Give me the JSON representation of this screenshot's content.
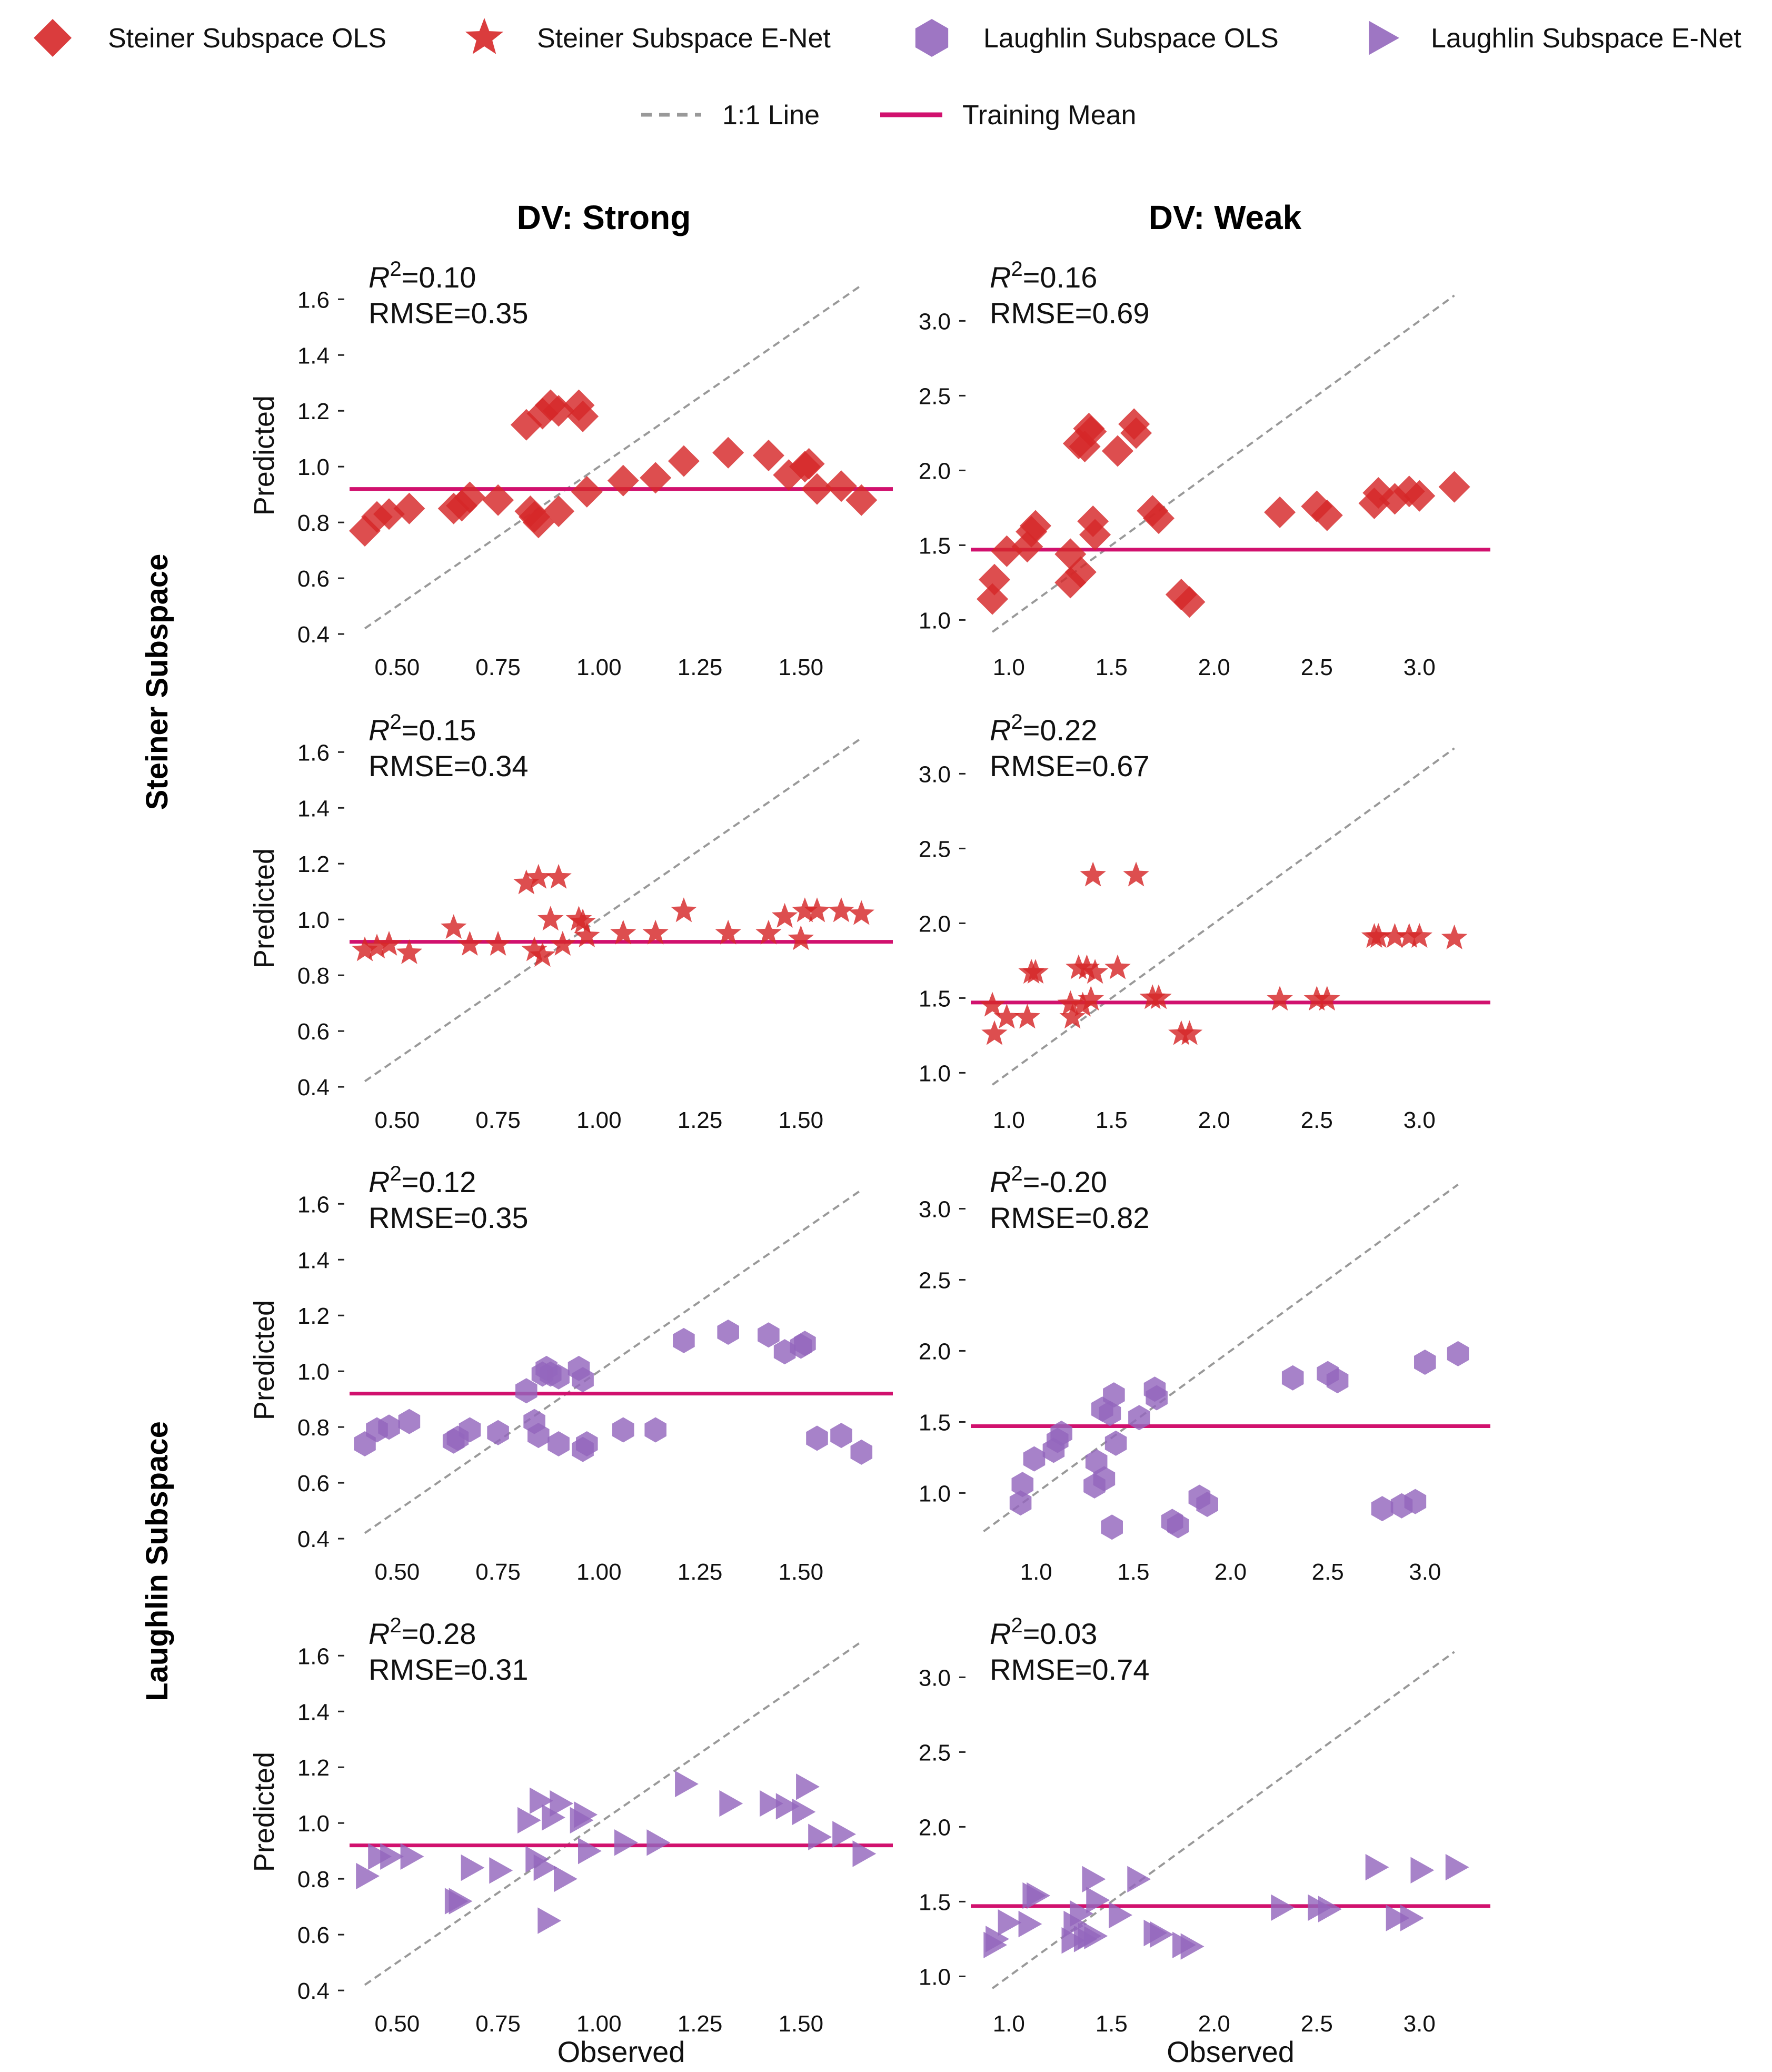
{
  "legend": {
    "items": [
      {
        "label": "Steiner Subspace OLS",
        "marker": "diamond",
        "color": "#d62728"
      },
      {
        "label": "Steiner Subspace E-Net",
        "marker": "star",
        "color": "#d62728"
      },
      {
        "label": "Laughlin Subspace OLS",
        "marker": "hexagon",
        "color": "#9467bd"
      },
      {
        "label": "Laughlin Subspace E-Net",
        "marker": "triangle-right",
        "color": "#9467bd"
      },
      {
        "label": "1:1 Line",
        "marker": "dashed-line",
        "color": "#999999"
      },
      {
        "label": "Training Mean",
        "marker": "solid-line",
        "color": "#d1116e"
      }
    ]
  },
  "columns": [
    "DV: Strong",
    "DV: Weak"
  ],
  "rows": [
    "Steiner Subspace",
    "Laughlin Subspace"
  ],
  "chart_data": [
    {
      "type": "scatter",
      "row": 0,
      "col": 0,
      "marker": "diamond",
      "color": "#d62728",
      "title": "DV: Strong",
      "xlabel": "",
      "ylabel": "Predicted",
      "annotation": {
        "r2": "=0.10",
        "rmse": "RMSE=0.35"
      },
      "xlim": [
        0.39,
        1.72
      ],
      "ylim": [
        0.37,
        1.71
      ],
      "xticks": [
        0.5,
        0.75,
        1.0,
        1.25,
        1.5
      ],
      "xtick_labels": [
        "0.50",
        "0.75",
        "1.00",
        "1.25",
        "1.50"
      ],
      "yticks": [
        0.4,
        0.6,
        0.8,
        1.0,
        1.2,
        1.4,
        1.6
      ],
      "ytick_labels": [
        "0.4",
        "0.6",
        "0.8",
        "1.0",
        "1.2",
        "1.4",
        "1.6"
      ],
      "identity_line": [
        0.42,
        1.65
      ],
      "training_mean": 0.92,
      "x": [
        0.42,
        0.45,
        0.48,
        0.53,
        0.64,
        0.66,
        0.68,
        0.75,
        0.82,
        0.83,
        0.85,
        0.86,
        0.88,
        0.9,
        0.9,
        0.95,
        0.96,
        0.97,
        1.06,
        1.14,
        1.21,
        1.32,
        1.42,
        1.47,
        1.51,
        1.52,
        1.54,
        1.6,
        1.65,
        0.84
      ],
      "y": [
        0.77,
        0.82,
        0.83,
        0.85,
        0.85,
        0.86,
        0.89,
        0.88,
        1.15,
        0.84,
        0.8,
        1.19,
        1.22,
        1.2,
        0.84,
        1.22,
        1.18,
        0.91,
        0.95,
        0.96,
        1.02,
        1.05,
        1.04,
        0.97,
        1.0,
        1.01,
        0.92,
        0.93,
        0.88,
        0.82
      ]
    },
    {
      "type": "scatter",
      "row": 0,
      "col": 1,
      "marker": "diamond",
      "color": "#d62728",
      "title": "DV: Weak",
      "xlabel": "",
      "ylabel": "",
      "annotation": {
        "r2": "=0.16",
        "rmse": "RMSE=0.69"
      },
      "xlim": [
        0.83,
        3.33
      ],
      "ylim": [
        0.85,
        3.35
      ],
      "xticks": [
        1.0,
        1.5,
        2.0,
        2.5,
        3.0
      ],
      "xtick_labels": [
        "1.0",
        "1.5",
        "2.0",
        "2.5",
        "3.0"
      ],
      "yticks": [
        1.0,
        1.5,
        2.0,
        2.5,
        3.0
      ],
      "ytick_labels": [
        "1.0",
        "1.5",
        "2.0",
        "2.5",
        "3.0"
      ],
      "identity_line": [
        0.92,
        3.17
      ],
      "training_mean": 1.47,
      "x": [
        0.92,
        0.93,
        0.99,
        1.09,
        1.11,
        1.13,
        1.3,
        1.3,
        1.34,
        1.35,
        1.37,
        1.4,
        1.41,
        1.42,
        1.53,
        1.61,
        1.62,
        1.7,
        1.73,
        1.84,
        1.88,
        2.32,
        2.5,
        2.55,
        2.78,
        2.8,
        2.88,
        2.95,
        3.0,
        3.17,
        1.39
      ],
      "y": [
        1.14,
        1.27,
        1.46,
        1.49,
        1.59,
        1.63,
        1.25,
        1.44,
        2.18,
        1.32,
        2.16,
        2.26,
        1.66,
        1.57,
        2.13,
        2.31,
        2.25,
        1.73,
        1.68,
        1.17,
        1.12,
        1.72,
        1.76,
        1.7,
        1.78,
        1.85,
        1.81,
        1.86,
        1.83,
        1.89,
        2.28
      ]
    },
    {
      "type": "scatter",
      "row": 1,
      "col": 0,
      "marker": "star",
      "color": "#d62728",
      "title": "",
      "xlabel": "",
      "ylabel": "Predicted",
      "annotation": {
        "r2": "=0.15",
        "rmse": "RMSE=0.34"
      },
      "xlim": [
        0.39,
        1.72
      ],
      "ylim": [
        0.37,
        1.71
      ],
      "xticks": [
        0.5,
        0.75,
        1.0,
        1.25,
        1.5
      ],
      "xtick_labels": [
        "0.50",
        "0.75",
        "1.00",
        "1.25",
        "1.50"
      ],
      "yticks": [
        0.4,
        0.6,
        0.8,
        1.0,
        1.2,
        1.4,
        1.6
      ],
      "ytick_labels": [
        "0.4",
        "0.6",
        "0.8",
        "1.0",
        "1.2",
        "1.4",
        "1.6"
      ],
      "identity_line": [
        0.42,
        1.65
      ],
      "training_mean": 0.92,
      "x": [
        0.42,
        0.45,
        0.48,
        0.53,
        0.64,
        0.68,
        0.75,
        0.82,
        0.84,
        0.85,
        0.86,
        0.88,
        0.9,
        0.91,
        0.95,
        0.96,
        0.97,
        1.06,
        1.14,
        1.21,
        1.32,
        1.42,
        1.46,
        1.5,
        1.51,
        1.54,
        1.6,
        1.65
      ],
      "y": [
        0.89,
        0.9,
        0.91,
        0.88,
        0.97,
        0.91,
        0.91,
        1.13,
        0.89,
        1.15,
        0.87,
        1.0,
        1.15,
        0.91,
        1.0,
        0.99,
        0.94,
        0.95,
        0.95,
        1.03,
        0.95,
        0.95,
        1.01,
        0.93,
        1.03,
        1.03,
        1.03,
        1.02
      ]
    },
    {
      "type": "scatter",
      "row": 1,
      "col": 1,
      "marker": "star",
      "color": "#d62728",
      "title": "",
      "xlabel": "",
      "ylabel": "",
      "annotation": {
        "r2": "=0.22",
        "rmse": "RMSE=0.67"
      },
      "xlim": [
        0.83,
        3.33
      ],
      "ylim": [
        0.85,
        3.35
      ],
      "xticks": [
        1.0,
        1.5,
        2.0,
        2.5,
        3.0
      ],
      "xtick_labels": [
        "1.0",
        "1.5",
        "2.0",
        "2.5",
        "3.0"
      ],
      "yticks": [
        1.0,
        1.5,
        2.0,
        2.5,
        3.0
      ],
      "ytick_labels": [
        "1.0",
        "1.5",
        "2.0",
        "2.5",
        "3.0"
      ],
      "identity_line": [
        0.92,
        3.17
      ],
      "training_mean": 1.47,
      "x": [
        0.92,
        0.93,
        0.99,
        1.09,
        1.11,
        1.13,
        1.3,
        1.31,
        1.34,
        1.36,
        1.38,
        1.4,
        1.41,
        1.42,
        1.53,
        1.62,
        1.7,
        1.73,
        1.84,
        1.88,
        2.32,
        2.5,
        2.55,
        2.78,
        2.8,
        2.88,
        2.95,
        3.0,
        3.17
      ],
      "y": [
        1.45,
        1.26,
        1.37,
        1.37,
        1.67,
        1.67,
        1.46,
        1.37,
        1.7,
        1.45,
        1.7,
        1.49,
        2.32,
        1.67,
        1.7,
        2.32,
        1.5,
        1.5,
        1.26,
        1.26,
        1.49,
        1.49,
        1.49,
        1.91,
        1.91,
        1.91,
        1.91,
        1.91,
        1.9
      ]
    },
    {
      "type": "scatter",
      "row": 2,
      "col": 0,
      "marker": "hexagon",
      "color": "#9467bd",
      "title": "",
      "xlabel": "",
      "ylabel": "Predicted",
      "annotation": {
        "r2": "=0.12",
        "rmse": "RMSE=0.35"
      },
      "xlim": [
        0.39,
        1.72
      ],
      "ylim": [
        0.37,
        1.71
      ],
      "xticks": [
        0.5,
        0.75,
        1.0,
        1.25,
        1.5
      ],
      "xtick_labels": [
        "0.50",
        "0.75",
        "1.00",
        "1.25",
        "1.50"
      ],
      "yticks": [
        0.4,
        0.6,
        0.8,
        1.0,
        1.2,
        1.4,
        1.6
      ],
      "ytick_labels": [
        "0.4",
        "0.6",
        "0.8",
        "1.0",
        "1.2",
        "1.4",
        "1.6"
      ],
      "identity_line": [
        0.42,
        1.65
      ],
      "training_mean": 0.92,
      "x": [
        0.42,
        0.45,
        0.48,
        0.53,
        0.64,
        0.65,
        0.68,
        0.75,
        0.82,
        0.84,
        0.85,
        0.86,
        0.87,
        0.88,
        0.9,
        0.9,
        0.95,
        0.96,
        0.96,
        0.97,
        1.06,
        1.14,
        1.21,
        1.32,
        1.42,
        1.46,
        1.5,
        1.51,
        1.54,
        1.6,
        1.65
      ],
      "y": [
        0.74,
        0.79,
        0.8,
        0.82,
        0.75,
        0.76,
        0.79,
        0.78,
        0.93,
        0.82,
        0.77,
        0.99,
        1.01,
        0.99,
        0.98,
        0.74,
        1.01,
        0.97,
        0.72,
        0.74,
        0.79,
        0.79,
        1.11,
        1.14,
        1.13,
        1.07,
        1.09,
        1.1,
        0.76,
        0.77,
        0.71
      ]
    },
    {
      "type": "scatter",
      "row": 2,
      "col": 1,
      "marker": "hexagon",
      "color": "#9467bd",
      "title": "",
      "xlabel": "",
      "ylabel": "",
      "annotation": {
        "r2": "=-0.20",
        "rmse": "RMSE=0.82"
      },
      "xlim": [
        0.68,
        3.32
      ],
      "ylim": [
        0.62,
        3.25
      ],
      "xticks": [
        1.0,
        1.5,
        2.0,
        2.5,
        3.0
      ],
      "xtick_labels": [
        "1.0",
        "1.5",
        "2.0",
        "2.5",
        "3.0"
      ],
      "yticks": [
        1.0,
        1.5,
        2.0,
        2.5,
        3.0
      ],
      "ytick_labels": [
        "1.0",
        "1.5",
        "2.0",
        "2.5",
        "3.0"
      ],
      "identity_line": [
        0.73,
        3.17
      ],
      "training_mean": 1.47,
      "x": [
        0.92,
        0.93,
        0.99,
        1.09,
        1.11,
        1.13,
        1.3,
        1.31,
        1.34,
        1.35,
        1.38,
        1.39,
        1.4,
        1.41,
        1.53,
        1.61,
        1.62,
        1.7,
        1.73,
        1.84,
        1.88,
        2.32,
        2.5,
        2.55,
        2.78,
        2.88,
        2.95,
        3.0,
        3.17
      ],
      "y": [
        0.93,
        1.06,
        1.24,
        1.3,
        1.37,
        1.42,
        1.05,
        1.22,
        1.59,
        1.1,
        1.56,
        0.76,
        1.69,
        1.35,
        1.53,
        1.73,
        1.67,
        0.8,
        0.77,
        0.97,
        0.92,
        1.81,
        1.84,
        1.79,
        0.89,
        0.91,
        0.94,
        1.92,
        1.98
      ]
    },
    {
      "type": "scatter",
      "row": 3,
      "col": 0,
      "marker": "triangle-right",
      "color": "#9467bd",
      "title": "",
      "xlabel": "Observed",
      "ylabel": "Predicted",
      "annotation": {
        "r2": "=0.28",
        "rmse": "RMSE=0.31"
      },
      "xlim": [
        0.39,
        1.72
      ],
      "ylim": [
        0.37,
        1.71
      ],
      "xticks": [
        0.5,
        0.75,
        1.0,
        1.25,
        1.5
      ],
      "xtick_labels": [
        "0.50",
        "0.75",
        "1.00",
        "1.25",
        "1.50"
      ],
      "yticks": [
        0.4,
        0.6,
        0.8,
        1.0,
        1.2,
        1.4,
        1.6
      ],
      "ytick_labels": [
        "0.4",
        "0.6",
        "0.8",
        "1.0",
        "1.2",
        "1.4",
        "1.6"
      ],
      "identity_line": [
        0.42,
        1.65
      ],
      "training_mean": 0.92,
      "x": [
        0.42,
        0.45,
        0.48,
        0.53,
        0.64,
        0.65,
        0.68,
        0.75,
        0.82,
        0.84,
        0.85,
        0.86,
        0.87,
        0.88,
        0.9,
        0.91,
        0.95,
        0.96,
        0.97,
        1.06,
        1.14,
        1.21,
        1.32,
        1.42,
        1.46,
        1.5,
        1.51,
        1.54,
        1.6,
        1.65
      ],
      "y": [
        0.81,
        0.88,
        0.88,
        0.88,
        0.72,
        0.72,
        0.84,
        0.83,
        1.01,
        0.87,
        1.08,
        0.84,
        0.65,
        1.02,
        1.07,
        0.8,
        1.01,
        1.03,
        0.9,
        0.93,
        0.93,
        1.14,
        1.07,
        1.07,
        1.06,
        1.04,
        1.13,
        0.95,
        0.96,
        0.89
      ]
    },
    {
      "type": "scatter",
      "row": 3,
      "col": 1,
      "marker": "triangle-right",
      "color": "#9467bd",
      "title": "",
      "xlabel": "Observed",
      "ylabel": "",
      "annotation": {
        "r2": "=0.03",
        "rmse": "RMSE=0.74"
      },
      "xlim": [
        0.83,
        3.33
      ],
      "ylim": [
        0.85,
        3.35
      ],
      "xticks": [
        1.0,
        1.5,
        2.0,
        2.5,
        3.0
      ],
      "xtick_labels": [
        "1.0",
        "1.5",
        "2.0",
        "2.5",
        "3.0"
      ],
      "yticks": [
        1.0,
        1.5,
        2.0,
        2.5,
        3.0
      ],
      "ytick_labels": [
        "1.0",
        "1.5",
        "2.0",
        "2.5",
        "3.0"
      ],
      "identity_line": [
        0.92,
        3.17
      ],
      "training_mean": 1.47,
      "x": [
        0.92,
        0.93,
        0.99,
        1.09,
        1.11,
        1.13,
        1.3,
        1.31,
        1.34,
        1.36,
        1.38,
        1.4,
        1.41,
        1.42,
        1.53,
        1.62,
        1.7,
        1.73,
        1.84,
        1.88,
        2.32,
        2.5,
        2.55,
        2.78,
        2.88,
        2.95,
        3.0,
        3.17
      ],
      "y": [
        1.21,
        1.25,
        1.36,
        1.35,
        1.54,
        1.54,
        1.24,
        1.35,
        1.42,
        1.25,
        1.27,
        1.65,
        1.27,
        1.51,
        1.41,
        1.65,
        1.29,
        1.28,
        1.21,
        1.2,
        1.46,
        1.46,
        1.45,
        1.73,
        1.39,
        1.39,
        1.71,
        1.73
      ]
    }
  ]
}
